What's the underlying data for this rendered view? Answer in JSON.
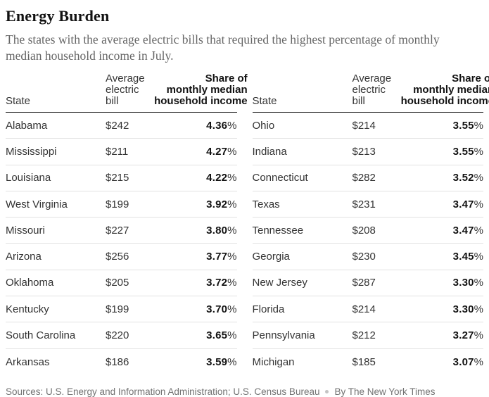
{
  "page": {
    "title": "Energy Burden",
    "subtitle": "The states with the average electric bills that required the highest percentage of monthly median household income in July.",
    "footer": {
      "sources": "Sources: U.S. Energy and Information Administration; U.S. Census Bureau",
      "byline": "By The New York Times",
      "separator_icon": "dot"
    }
  },
  "colors": {
    "title_text": "#121212",
    "subtitle_text": "#666666",
    "table_text": "#333333",
    "header_rule": "#1a1a1a",
    "row_divider": "#e2e2e2",
    "footer_text": "#727272",
    "background": "#ffffff"
  },
  "table_headers": {
    "state": "State",
    "bill": "Average\nelectric\nbill",
    "share": "Share of\nmonthly median\nhousehold income"
  },
  "tables": [
    {
      "rows": [
        {
          "state": "Alabama",
          "bill": "$242",
          "share": "4.36",
          "unit": "%"
        },
        {
          "state": "Mississippi",
          "bill": "$211",
          "share": "4.27",
          "unit": "%"
        },
        {
          "state": "Louisiana",
          "bill": "$215",
          "share": "4.22",
          "unit": "%"
        },
        {
          "state": "West Virginia",
          "bill": "$199",
          "share": "3.92",
          "unit": "%"
        },
        {
          "state": "Missouri",
          "bill": "$227",
          "share": "3.80",
          "unit": "%"
        },
        {
          "state": "Arizona",
          "bill": "$256",
          "share": "3.77",
          "unit": "%"
        },
        {
          "state": "Oklahoma",
          "bill": "$205",
          "share": "3.72",
          "unit": "%"
        },
        {
          "state": "Kentucky",
          "bill": "$199",
          "share": "3.70",
          "unit": "%"
        },
        {
          "state": "South Carolina",
          "bill": "$220",
          "share": "3.65",
          "unit": "%"
        },
        {
          "state": "Arkansas",
          "bill": "$186",
          "share": "3.59",
          "unit": "%"
        }
      ]
    },
    {
      "rows": [
        {
          "state": "Ohio",
          "bill": "$214",
          "share": "3.55",
          "unit": "%"
        },
        {
          "state": "Indiana",
          "bill": "$213",
          "share": "3.55",
          "unit": "%"
        },
        {
          "state": "Connecticut",
          "bill": "$282",
          "share": "3.52",
          "unit": "%"
        },
        {
          "state": "Texas",
          "bill": "$231",
          "share": "3.47",
          "unit": "%"
        },
        {
          "state": "Tennessee",
          "bill": "$208",
          "share": "3.47",
          "unit": "%"
        },
        {
          "state": "Georgia",
          "bill": "$230",
          "share": "3.45",
          "unit": "%"
        },
        {
          "state": "New Jersey",
          "bill": "$287",
          "share": "3.30",
          "unit": "%"
        },
        {
          "state": "Florida",
          "bill": "$214",
          "share": "3.30",
          "unit": "%"
        },
        {
          "state": "Pennsylvania",
          "bill": "$212",
          "share": "3.27",
          "unit": "%"
        },
        {
          "state": "Michigan",
          "bill": "$185",
          "share": "3.07",
          "unit": "%"
        }
      ]
    }
  ],
  "chart_data": {
    "type": "table",
    "title": "Energy Burden",
    "subtitle": "The states with the average electric bills that required the highest percentage of monthly median household income in July.",
    "columns": [
      "State",
      "Average electric bill ($)",
      "Share of monthly median household income (%)"
    ],
    "rows": [
      [
        "Alabama",
        242,
        4.36
      ],
      [
        "Mississippi",
        211,
        4.27
      ],
      [
        "Louisiana",
        215,
        4.22
      ],
      [
        "West Virginia",
        199,
        3.92
      ],
      [
        "Missouri",
        227,
        3.8
      ],
      [
        "Arizona",
        256,
        3.77
      ],
      [
        "Oklahoma",
        205,
        3.72
      ],
      [
        "Kentucky",
        199,
        3.7
      ],
      [
        "South Carolina",
        220,
        3.65
      ],
      [
        "Arkansas",
        186,
        3.59
      ],
      [
        "Ohio",
        214,
        3.55
      ],
      [
        "Indiana",
        213,
        3.55
      ],
      [
        "Connecticut",
        282,
        3.52
      ],
      [
        "Texas",
        231,
        3.47
      ],
      [
        "Tennessee",
        208,
        3.47
      ],
      [
        "Georgia",
        230,
        3.45
      ],
      [
        "New Jersey",
        287,
        3.3
      ],
      [
        "Florida",
        214,
        3.3
      ],
      [
        "Pennsylvania",
        212,
        3.27
      ],
      [
        "Michigan",
        185,
        3.07
      ]
    ],
    "layout": "two side-by-side tables of 10 rows each, ranked descending by share",
    "source": "Sources: U.S. Energy and Information Administration; U.S. Census Bureau",
    "byline": "By The New York Times"
  }
}
